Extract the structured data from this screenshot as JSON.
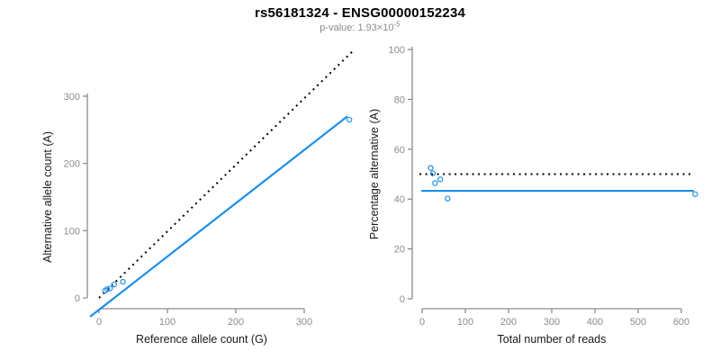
{
  "page": {
    "title": "rs56181324 - ENSG00000152234",
    "subtitle_prefix": "p-value: 1.93×10",
    "subtitle_exponent": "-5"
  },
  "colors": {
    "accent_blue": "#1E8FE8",
    "dotted_black": "#000000",
    "axis_gray": "#8c8c8c",
    "tick_label_gray": "#8c8c8c",
    "label_black": "#1a1a1a"
  },
  "chart_data": [
    {
      "id": "allele-count-scatter",
      "type": "scatter",
      "xlabel": "Reference allele count (G)",
      "ylabel": "Alternative allele count (A)",
      "xticks": [
        0,
        100,
        200,
        300
      ],
      "yticks": [
        0,
        100,
        200,
        300
      ],
      "xlim": [
        -13,
        378
      ],
      "ylim": [
        -28,
        370
      ],
      "grid": false,
      "legend": "none",
      "points": [
        [
          9,
          11
        ],
        [
          12,
          13
        ],
        [
          16,
          14
        ],
        [
          22,
          20
        ],
        [
          35,
          24
        ],
        [
          366,
          265
        ]
      ],
      "lines": [
        {
          "name": "identity-line",
          "style": "dotted",
          "color": "#000000",
          "x1": 0,
          "y1": 0,
          "x2": 371,
          "y2": 367
        },
        {
          "name": "fit-line",
          "style": "solid",
          "color": "#1E8FE8",
          "x1": -13,
          "y1": -28,
          "x2": 363,
          "y2": 270
        }
      ]
    },
    {
      "id": "percentage-reads-scatter",
      "type": "scatter",
      "xlabel": "Total number of reads",
      "ylabel": "Percentage alternative (A)",
      "xticks": [
        0,
        100,
        200,
        300,
        400,
        500,
        600
      ],
      "yticks": [
        0,
        20,
        40,
        60,
        80,
        100
      ],
      "xlim": [
        -6,
        630
      ],
      "ylim": [
        0,
        100
      ],
      "grid": false,
      "legend": "none",
      "points": [
        [
          20,
          52.5
        ],
        [
          25,
          50.3
        ],
        [
          30,
          46.4
        ],
        [
          42,
          47.9
        ],
        [
          59,
          40.2
        ],
        [
          632,
          42
        ]
      ],
      "lines": [
        {
          "name": "expected-50pct-line",
          "style": "dotted",
          "color": "#000000",
          "x1": -6,
          "y1": 50,
          "x2": 627,
          "y2": 50
        },
        {
          "name": "mean-percentage-line",
          "style": "solid",
          "color": "#1E8FE8",
          "x1": -2,
          "y1": 43.3,
          "x2": 629,
          "y2": 43.3
        }
      ]
    }
  ]
}
